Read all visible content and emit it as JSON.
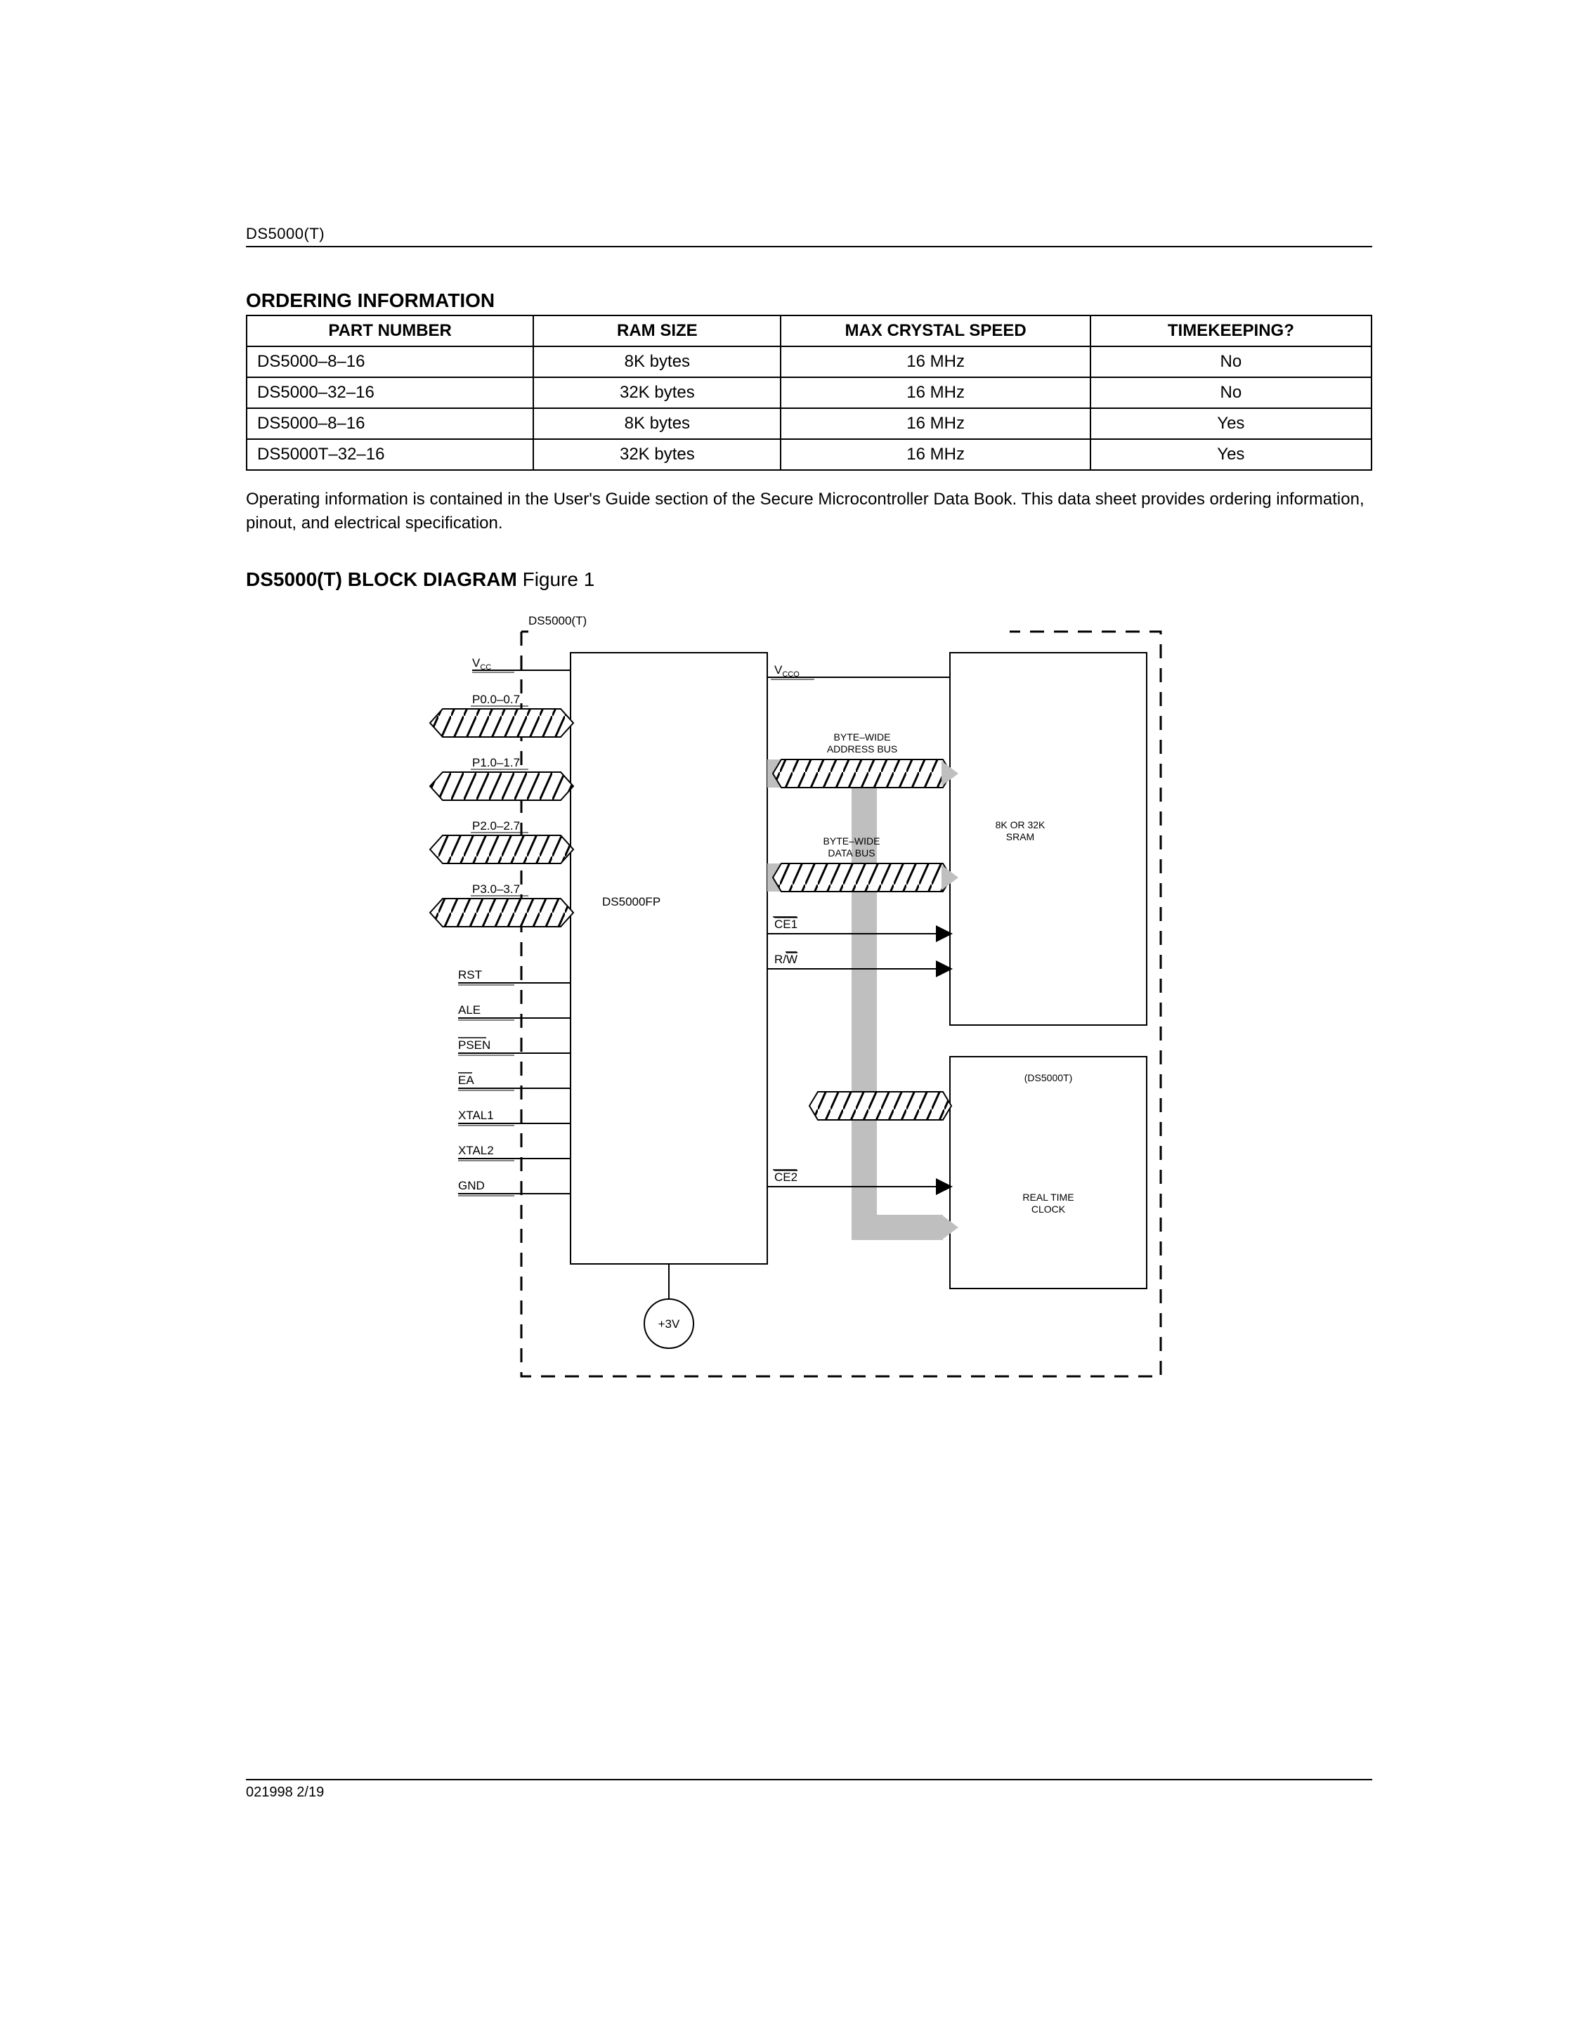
{
  "header_label": "DS5000(T)",
  "section1_title": "ORDERING INFORMATION",
  "table": {
    "columns": [
      "PART NUMBER",
      "RAM SIZE",
      "MAX CRYSTAL SPEED",
      "TIMEKEEPING?"
    ],
    "col_widths_pct": [
      25.5,
      22,
      27.5,
      25
    ],
    "col_align": [
      "l",
      "c",
      "c",
      "c"
    ],
    "rows": [
      [
        "DS5000–8–16",
        "8K bytes",
        "16 MHz",
        "No"
      ],
      [
        "DS5000–32–16",
        "32K bytes",
        "16 MHz",
        "No"
      ],
      [
        "DS5000–8–16",
        "8K bytes",
        "16 MHz",
        "Yes"
      ],
      [
        "DS5000T–32–16",
        "32K bytes",
        "16 MHz",
        "Yes"
      ]
    ]
  },
  "note_text": "Operating information is contained in the User's Guide section of the Secure Microcontroller Data Book.  This data sheet provides ordering information, pinout, and electrical specification.",
  "fig_title_bold": "DS5000(T) BLOCK DIAGRAM",
  "fig_title_rest": " Figure 1",
  "diagram": {
    "boundary_label": "DS5000(T)",
    "main_block": "DS5000FP",
    "sram_block": "8K OR 32K SRAM",
    "clock_block_top": "(DS5000T)",
    "clock_block_l1": "REAL TIME",
    "clock_block_l2": "CLOCK",
    "battery": "+3V",
    "vcc": "V",
    "vcc_sub": "CC",
    "vcco": "V",
    "vcco_sub": "CCO",
    "addr_bus_l1": "BYTE–WIDE",
    "addr_bus_l2": "ADDRESS BUS",
    "data_bus_l1": "BYTE–WIDE",
    "data_bus_l2": "DATA BUS",
    "ce1": "CE1",
    "rw_r": "R/",
    "rw_w": "W",
    "ce2": "CE2",
    "ports": [
      "P0.0–0.7",
      "P1.0–1.7",
      "P2.0–2.7",
      "P3.0–3.7"
    ],
    "pins": [
      "RST",
      "ALE",
      "PSEN",
      "EA",
      "XTAL1",
      "XTAL2",
      "GND"
    ],
    "overline_pins": {
      "PSEN": true,
      "EA": true
    },
    "colors": {
      "stroke": "#000000",
      "hatch": "#000000",
      "grey": "#bfbfbf",
      "bg": "#ffffff"
    }
  },
  "footer": "021998 2/19"
}
